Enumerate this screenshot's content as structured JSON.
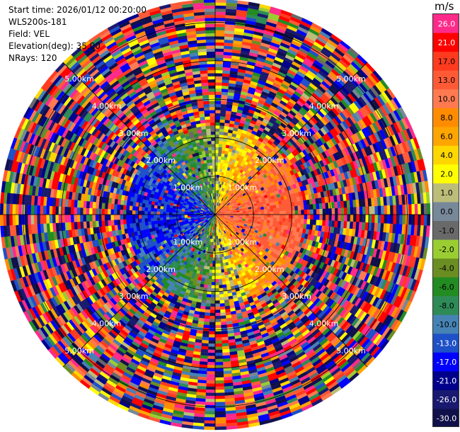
{
  "header": {
    "start_time": "Start time: 2026/01/12 00:20:00",
    "instrument": "WLS200s-181",
    "field": "Field: VEL",
    "elevation": "Elevation(deg): 35.00",
    "nrays": "NRays: 120"
  },
  "colorbar": {
    "unit": "m/s",
    "entries": [
      {
        "label": "26.0",
        "color": "#ff2a8a"
      },
      {
        "label": "21.0",
        "color": "#ff0000"
      },
      {
        "label": "17.0",
        "color": "#ff3b1f"
      },
      {
        "label": "13.0",
        "color": "#ff5a36"
      },
      {
        "label": "10.0",
        "color": "#ff7a50"
      },
      {
        "label": "8.0",
        "color": "#ff8c00"
      },
      {
        "label": "6.0",
        "color": "#ffa500"
      },
      {
        "label": "4.0",
        "color": "#ffd700"
      },
      {
        "label": "2.0",
        "color": "#ffff00"
      },
      {
        "label": "1.0",
        "color": "#bdbd7a"
      },
      {
        "label": "0.0",
        "color": "#778899"
      },
      {
        "label": "-1.0",
        "color": "#696969"
      },
      {
        "label": "-2.0",
        "color": "#9acd32"
      },
      {
        "label": "-4.0",
        "color": "#6b8e23"
      },
      {
        "label": "-6.0",
        "color": "#228b22"
      },
      {
        "label": "-8.0",
        "color": "#2e8b57"
      },
      {
        "label": "-10.0",
        "color": "#4682b4"
      },
      {
        "label": "-13.0",
        "color": "#1e50c8"
      },
      {
        "label": "-17.0",
        "color": "#0000ff"
      },
      {
        "label": "-21.0",
        "color": "#00008b"
      },
      {
        "label": "-26.0",
        "color": "#191970"
      },
      {
        "label": "-30.0",
        "color": "#10104a"
      }
    ]
  },
  "chart_data": {
    "type": "heatmap",
    "projection": "polar (PPI)",
    "field": "VEL",
    "units": "m/s",
    "elevation_deg": 35.0,
    "nrays": 120,
    "range_rings_km": [
      1.0,
      2.0,
      3.0,
      4.0,
      5.0
    ],
    "range_ring_labels": [
      "1.00km",
      "2.00km",
      "3.00km",
      "4.00km",
      "5.00km"
    ],
    "max_range_km": 5.6,
    "value_range": [
      -30.0,
      30.0
    ],
    "pattern": "Near field (< ~2.2 km): negative velocities (blue/green) on west side, positive velocities (red/orange/pink) on east side, yellow near north-south axis; beyond ~2.2 km: noise-dominated speckle across all colors"
  }
}
